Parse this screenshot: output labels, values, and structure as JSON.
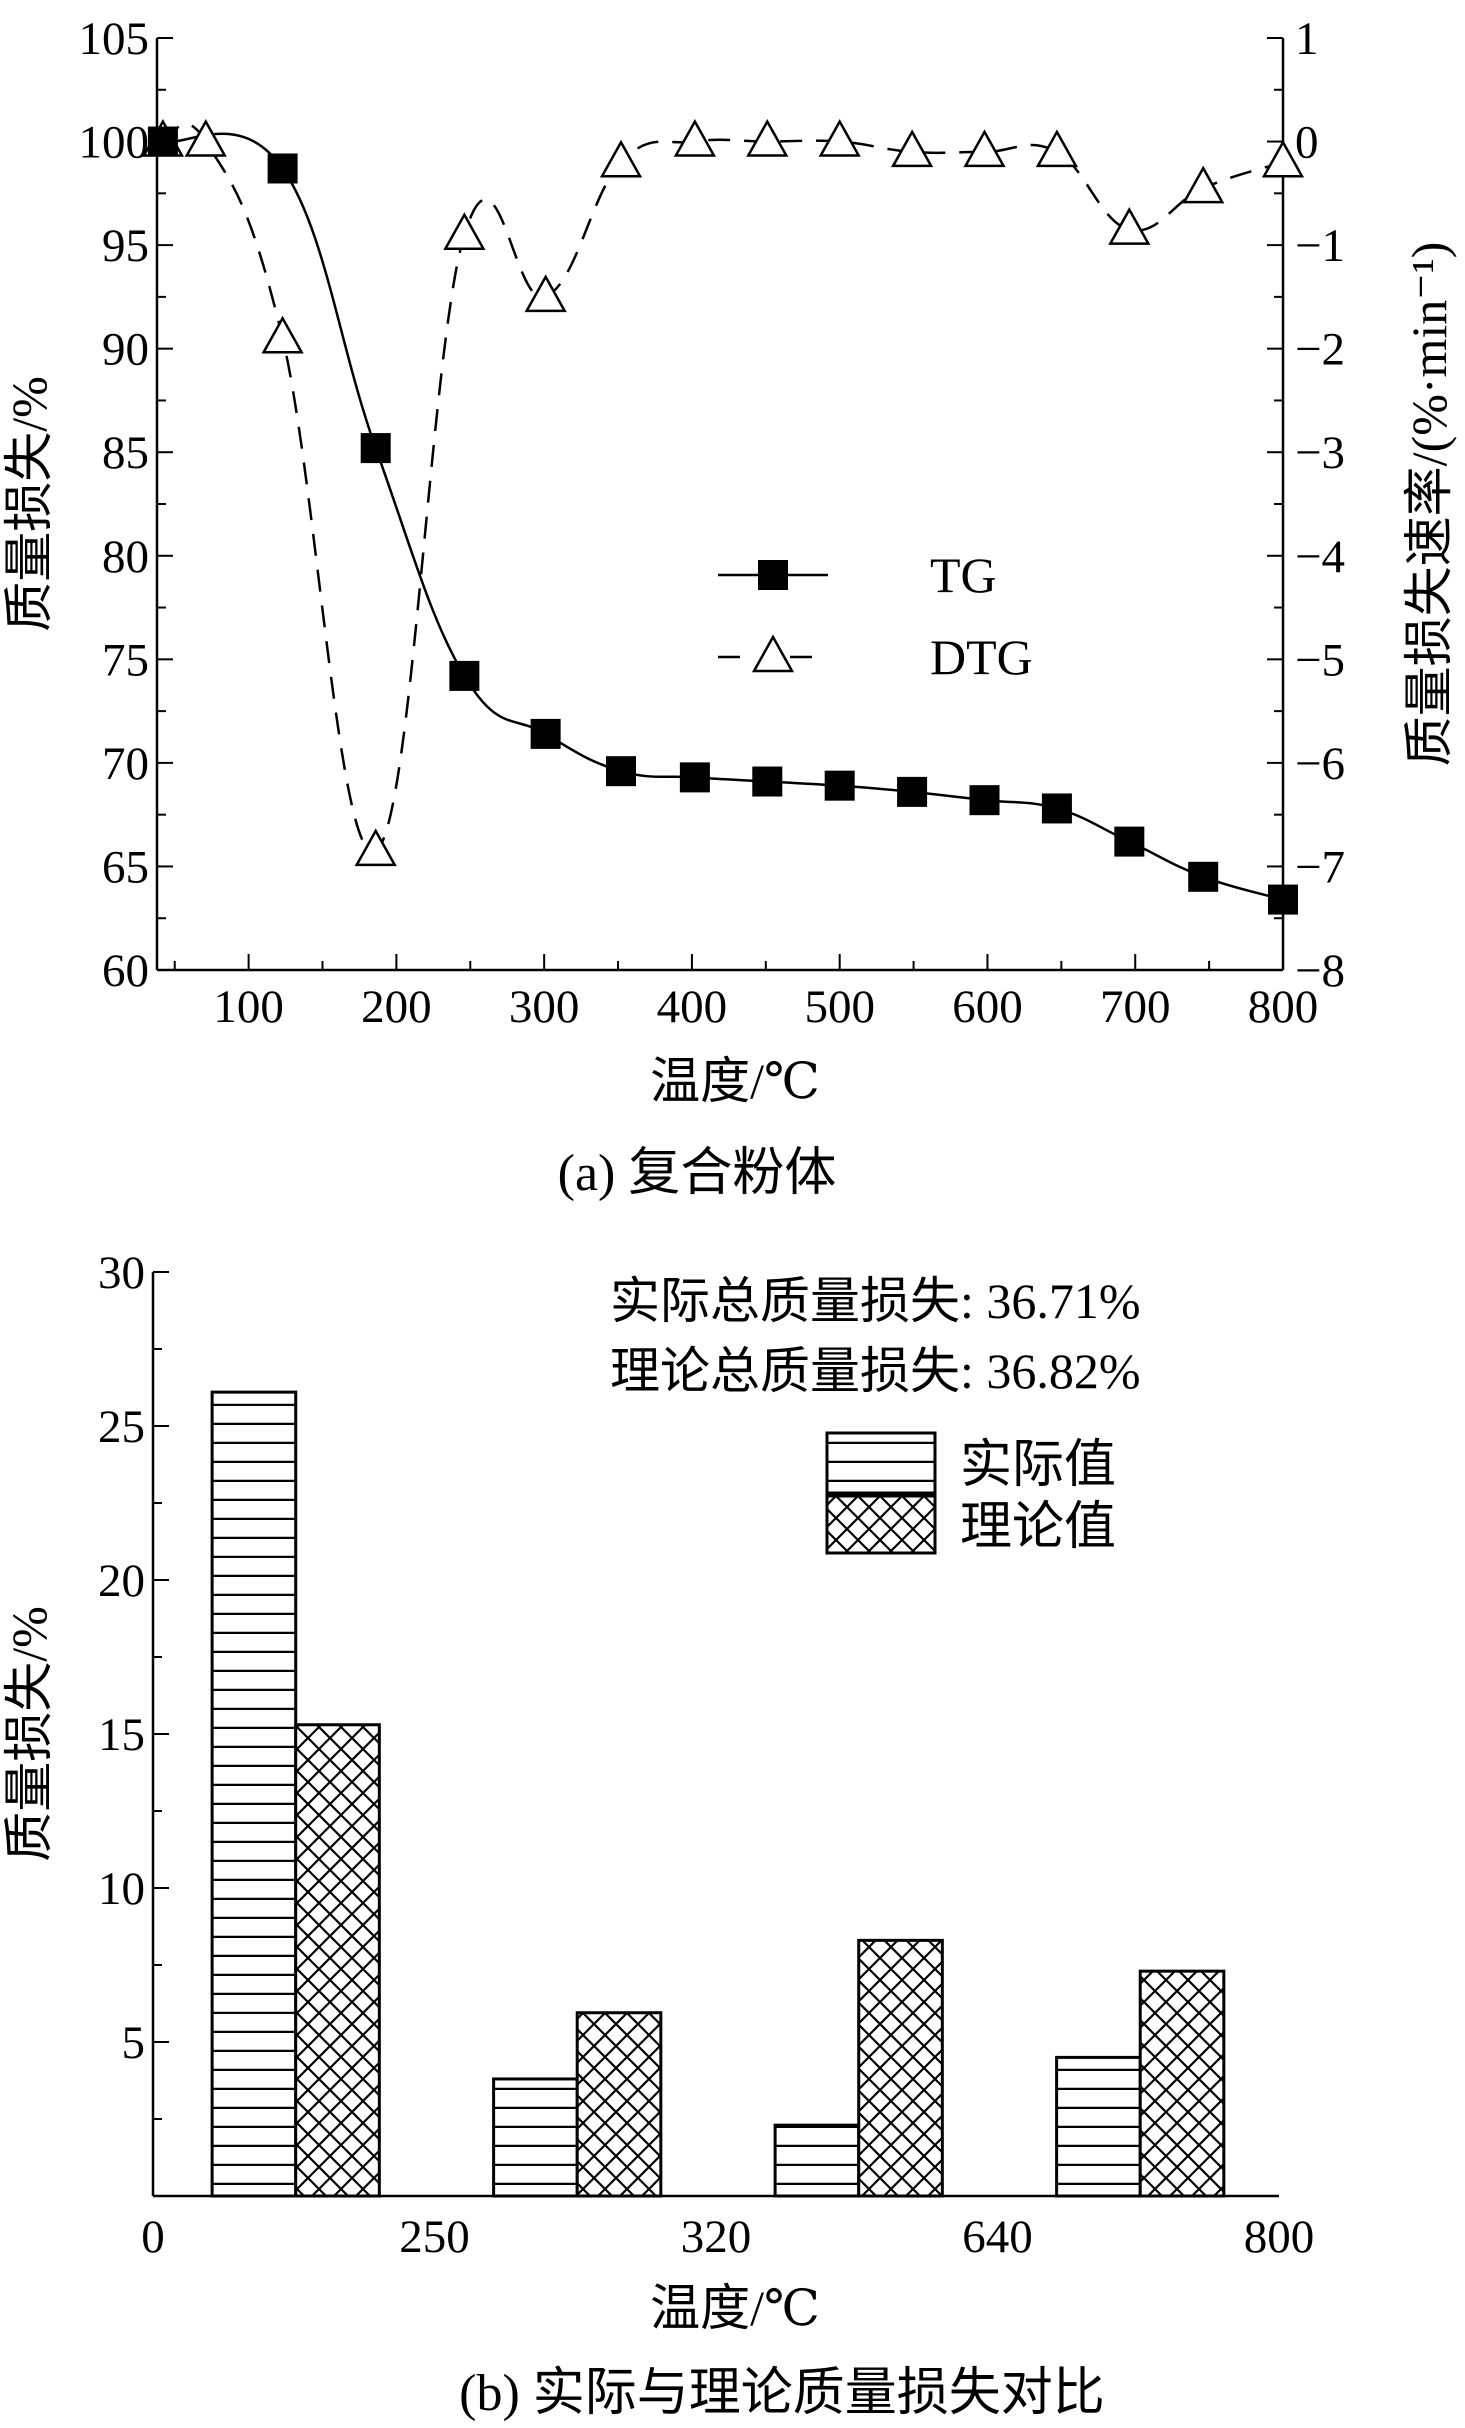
{
  "chart_data": [
    {
      "type": "line",
      "caption": "(a) 复合粉体",
      "xlabel": "温度/℃",
      "ylabel": "质量损失/%",
      "y2label": "质量损失速率/(%·min⁻¹)",
      "xlim": [
        38,
        800
      ],
      "ylim": [
        60,
        105
      ],
      "y2lim": [
        -8,
        1
      ],
      "xticks": [
        100,
        200,
        300,
        400,
        500,
        600,
        700,
        800
      ],
      "yticks": [
        60,
        65,
        70,
        75,
        80,
        85,
        90,
        95,
        100,
        105
      ],
      "y2ticks": [
        -8,
        -7,
        -6,
        -5,
        -4,
        -3,
        -2,
        -1,
        0,
        1
      ],
      "legend_position": "center-right",
      "series": [
        {
          "name": "TG",
          "axis": "left",
          "marker": "filled-square",
          "line": "solid",
          "x": [
            42,
            123,
            186,
            246,
            301,
            352,
            402,
            451,
            500,
            549,
            598,
            647,
            696,
            746,
            800
          ],
          "y": [
            100,
            98.7,
            85.2,
            74.2,
            71.4,
            69.6,
            69.3,
            69.1,
            68.9,
            68.6,
            68.2,
            67.8,
            66.2,
            64.5,
            63.4
          ]
        },
        {
          "name": "DTG",
          "axis": "right",
          "marker": "open-triangle",
          "line": "dashed",
          "x": [
            42,
            71,
            123,
            186,
            246,
            301,
            352,
            402,
            451,
            500,
            549,
            598,
            647,
            696,
            746,
            800
          ],
          "y": [
            0,
            0,
            -1.9,
            -6.85,
            -0.9,
            -1.5,
            -0.2,
            0,
            0,
            0,
            -0.1,
            -0.1,
            -0.1,
            -0.85,
            -0.45,
            -0.2
          ]
        }
      ]
    },
    {
      "type": "bar",
      "caption": "(b) 实际与理论质量损失对比",
      "xlabel": "温度/℃",
      "ylabel": "质量损失/%",
      "xtick_labels": [
        "0",
        "250",
        "320",
        "640",
        "800"
      ],
      "categories": [
        "0-250",
        "250-320",
        "320-640",
        "640-800"
      ],
      "ylim": [
        0,
        30
      ],
      "yticks": [
        5,
        10,
        15,
        20,
        25,
        30
      ],
      "legend_position": "top-right",
      "annotations": [
        "实际总质量损失: 36.71%",
        "理论总质量损失: 36.82%"
      ],
      "series": [
        {
          "name": "实际值",
          "pattern": "horizontal-lines",
          "values": [
            26.1,
            3.8,
            2.3,
            4.5
          ]
        },
        {
          "name": "理论值",
          "pattern": "crosshatch",
          "values": [
            15.3,
            5.95,
            8.3,
            7.3
          ]
        }
      ]
    }
  ]
}
